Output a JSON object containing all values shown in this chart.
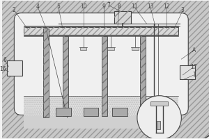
{
  "bg": "#f2f2f2",
  "lc": "#444444",
  "hatch_gray": "#999999",
  "wall_gray": "#aaaaaa",
  "light_gray": "#d8d8d8",
  "white": "#f9f9f9",
  "outer_fill": "#c8c8c8",
  "inner_fill": "#f0f0f0",
  "label_fs": 5.5
}
